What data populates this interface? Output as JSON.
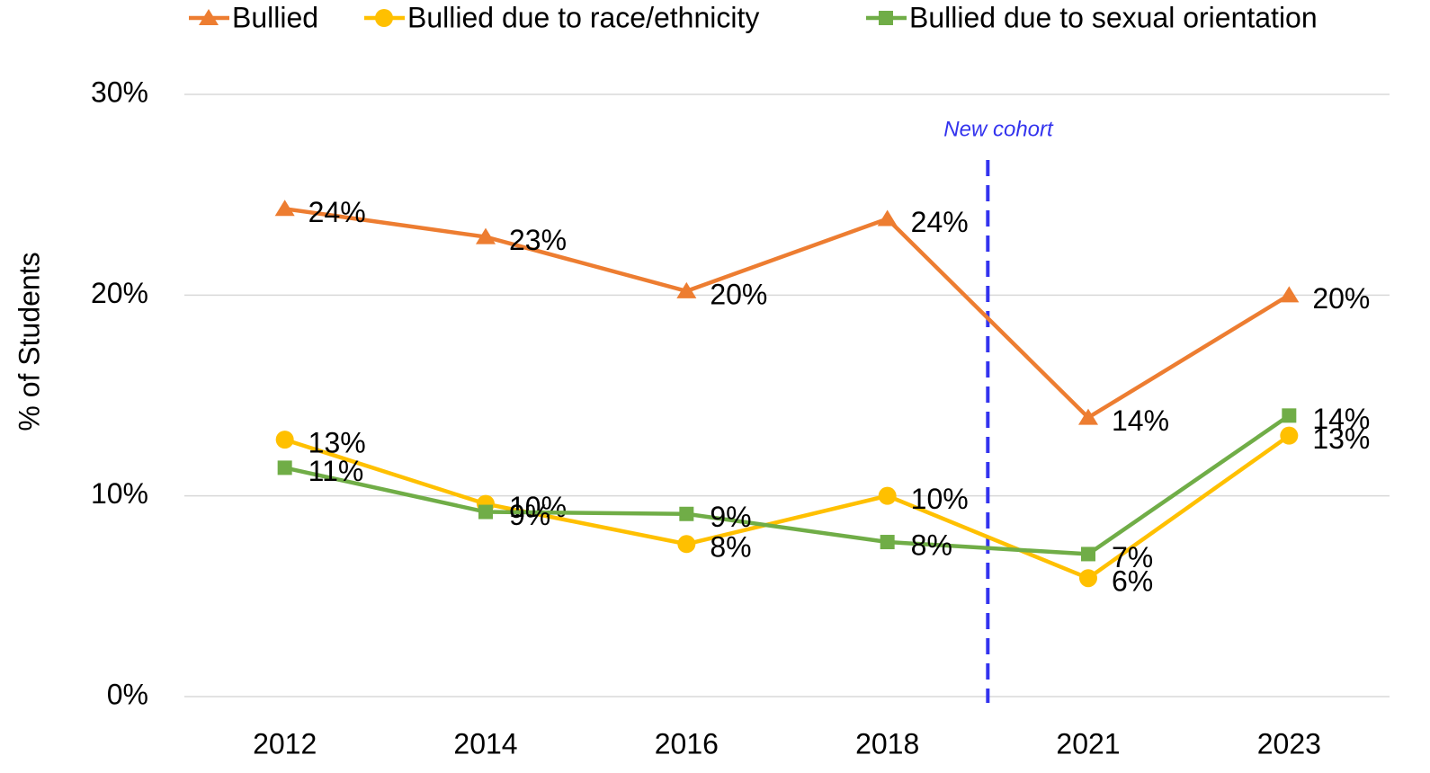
{
  "chart_data": {
    "type": "line",
    "y_axis_label": "% of Students",
    "annotation": "New cohort",
    "categories": [
      "2012",
      "2014",
      "2016",
      "2018",
      "2021",
      "2023"
    ],
    "series": [
      {
        "name": "Bullied",
        "color": "#ed7d31",
        "marker": "triangle",
        "values": [
          24.3,
          22.9,
          20.2,
          23.8,
          13.9,
          20.0
        ],
        "value_labels": [
          "24%",
          "23%",
          "20%",
          "24%",
          "14%",
          "20%"
        ]
      },
      {
        "name": "Bullied due to race/ethnicity",
        "color": "#ffc000",
        "marker": "circle",
        "values": [
          12.8,
          9.6,
          7.6,
          10.0,
          5.9,
          13.0
        ],
        "value_labels": [
          "13%",
          "10%",
          "8%",
          "10%",
          "6%",
          "13%"
        ]
      },
      {
        "name": "Bullied due to sexual orientation",
        "color": "#70ad47",
        "marker": "square",
        "values": [
          11.4,
          9.2,
          9.1,
          7.7,
          7.1,
          14.0
        ],
        "value_labels": [
          "11%",
          "9%",
          "9%",
          "8%",
          "7%",
          "14%"
        ]
      }
    ],
    "ylim": [
      0,
      30
    ],
    "yticks": [
      {
        "value": 0,
        "label": "0%"
      },
      {
        "value": 10,
        "label": "10%"
      },
      {
        "value": 20,
        "label": "20%"
      },
      {
        "value": 30,
        "label": "30%"
      }
    ],
    "grid": true,
    "legend": "top"
  }
}
